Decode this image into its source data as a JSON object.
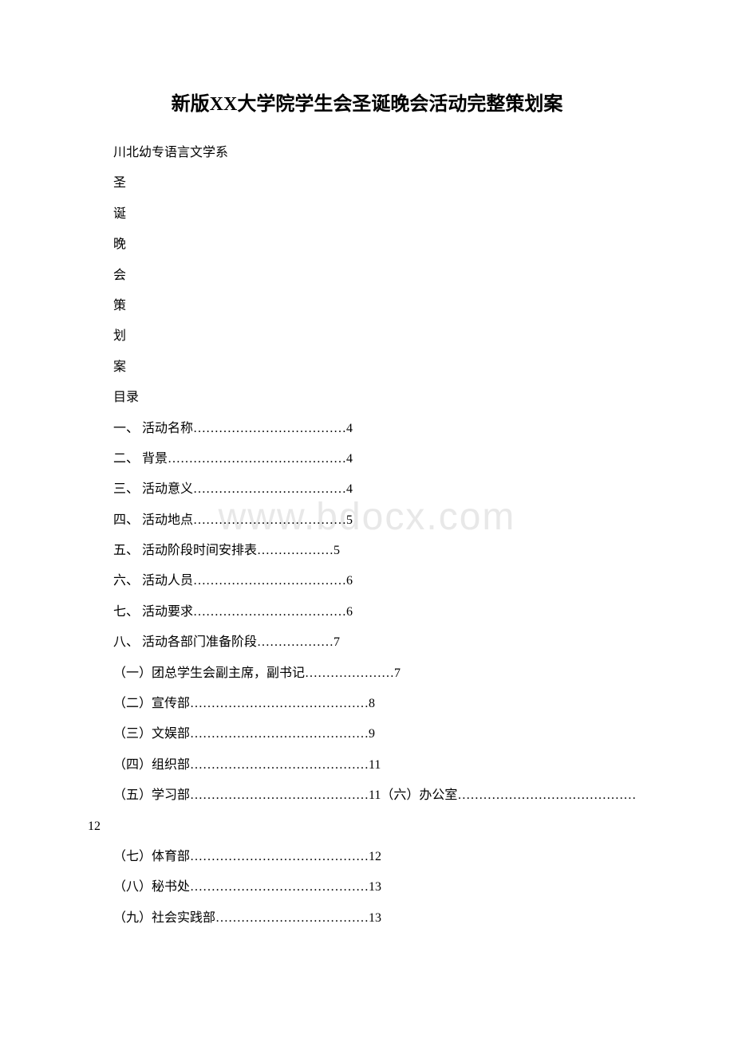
{
  "watermark": "www.bdocx.com",
  "title_prefix": "新版",
  "title_xx": "XX",
  "title_suffix": "大学院学生会圣诞晚会活动完整策划案",
  "subtitle": "川北幼专语言文学系",
  "vertical_chars": [
    "圣",
    "诞",
    "晚",
    "会",
    "策",
    "划",
    "案"
  ],
  "toc_header": "目录",
  "toc": [
    "一、 活动名称………………………………4",
    "二、 背景……………………………………4",
    "三、 活动意义………………………………4",
    "四、 活动地点………………………………5",
    "五、 活动阶段时间安排表………………5",
    "六、 活动人员………………………………6",
    "七、 活动要求………………………………6",
    "八、 活动各部门准备阶段………………7",
    "（一）团总学生会副主席，副书记…………………7",
    "（二）宣传部……………………………………8",
    "（三）文娱部……………………………………9",
    "（四）组织部……………………………………11"
  ],
  "toc_wrapped": "（五）学习部……………………………………11（六）办公室……………………………………12",
  "toc_after": [
    "（七）体育部……………………………………12",
    "（八）秘书处……………………………………13",
    "（九）社会实践部………………………………13"
  ]
}
